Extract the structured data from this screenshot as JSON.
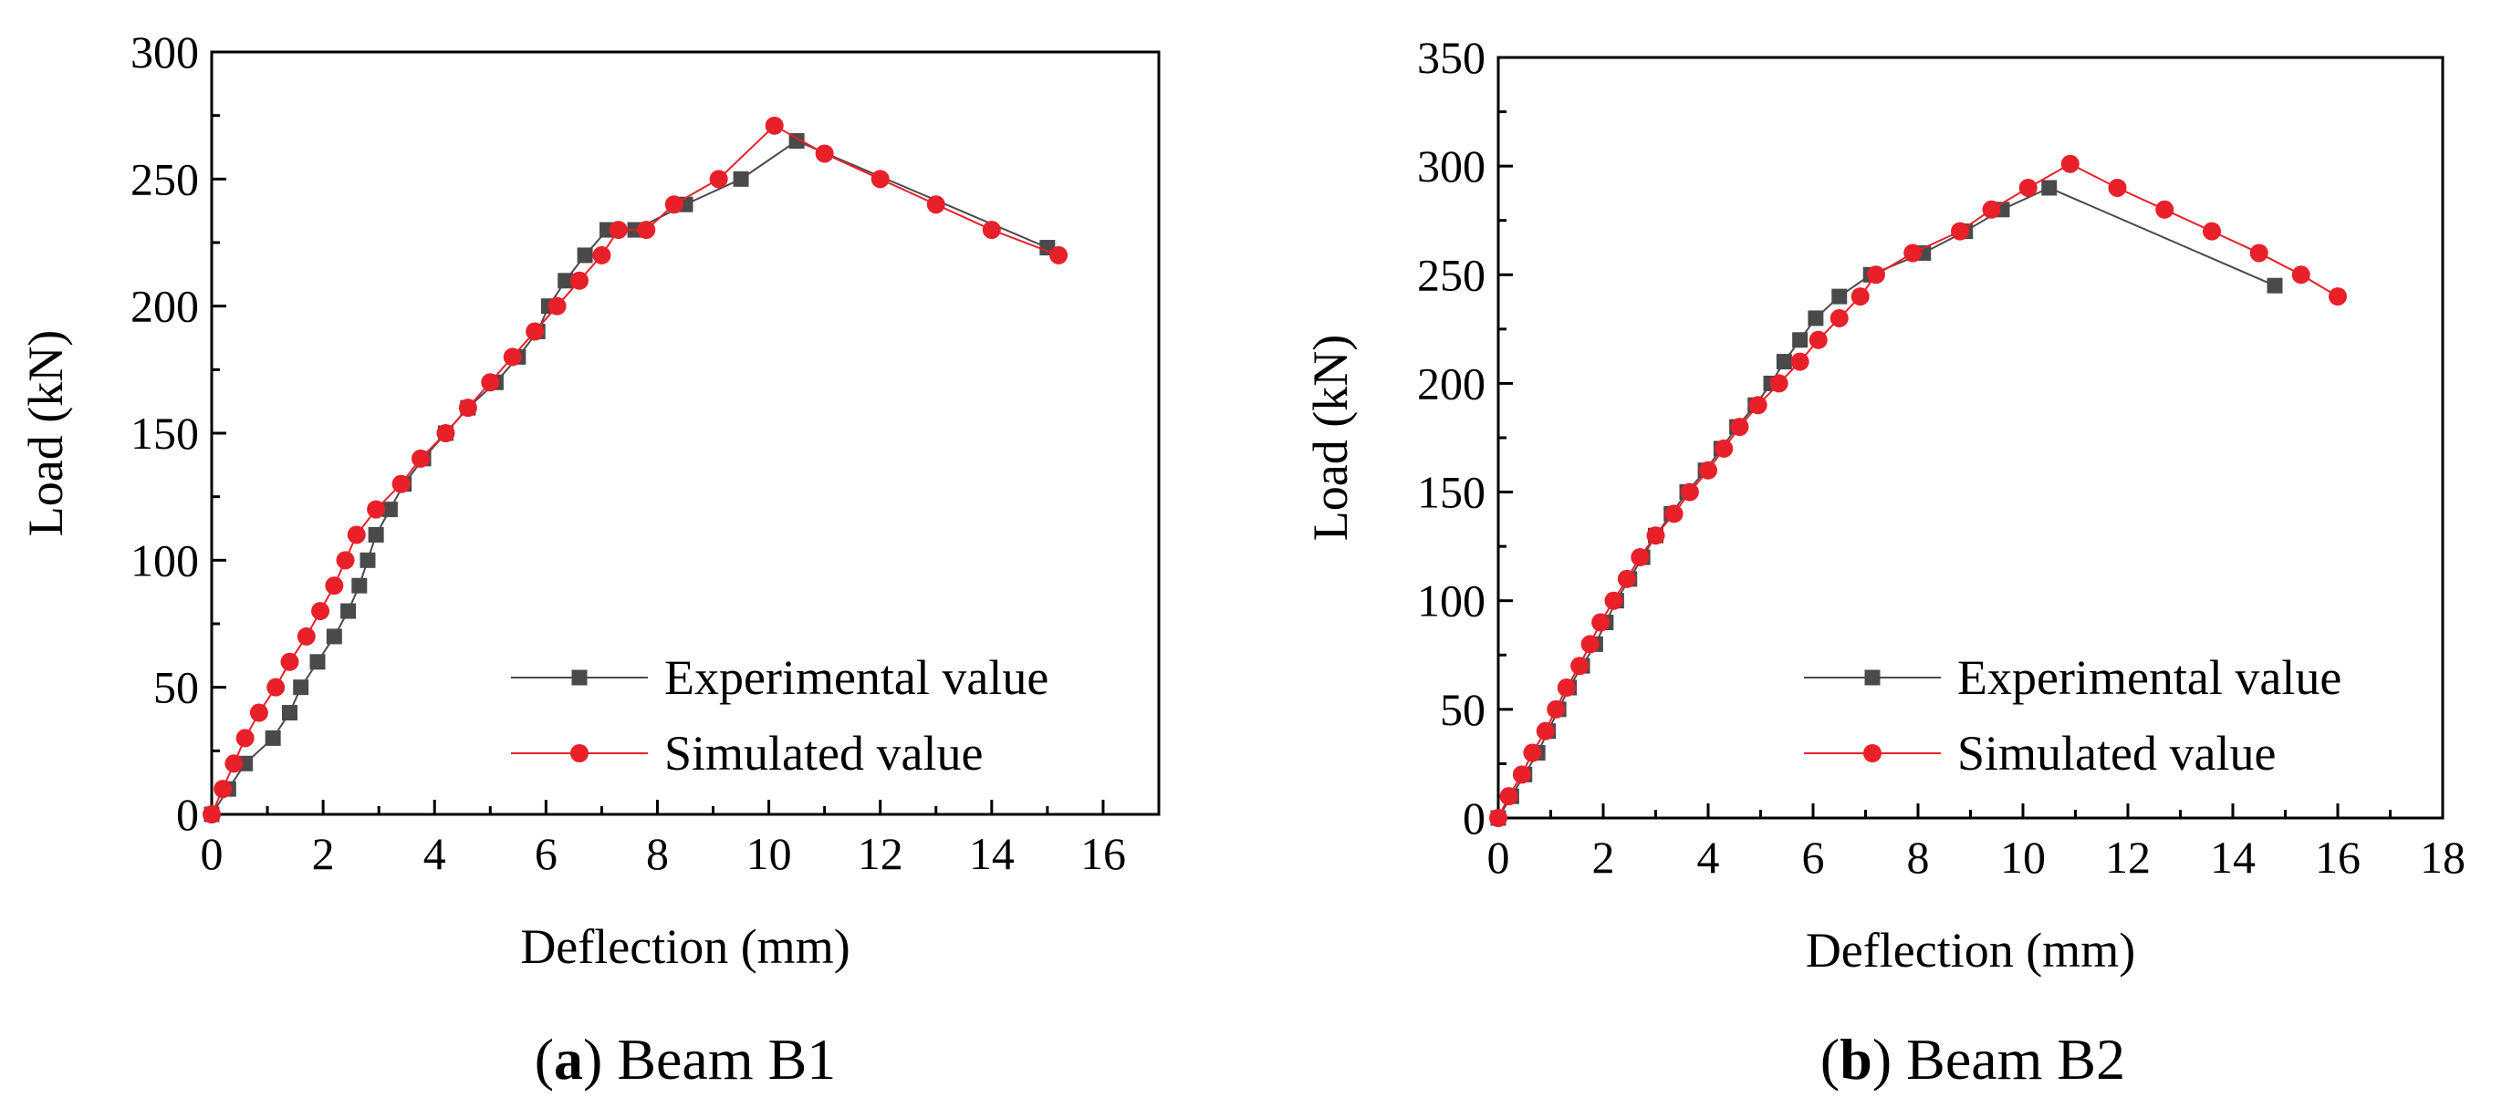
{
  "chart_data": [
    {
      "type": "line",
      "caption_letter": "a",
      "caption_text": ") Beam B1",
      "caption_open": "(",
      "xlabel": "Deflection (mm)",
      "ylabel": "Load (kN)",
      "xlim": [
        0,
        17
      ],
      "ylim": [
        0,
        300
      ],
      "xticks": [
        0,
        2,
        4,
        6,
        8,
        10,
        12,
        14,
        16
      ],
      "yticks": [
        0,
        50,
        100,
        150,
        200,
        250,
        300
      ],
      "legend_position": "bottom-right",
      "series": [
        {
          "name": "Experimental value",
          "color": "#4a4a4a",
          "marker": "square",
          "points": [
            [
              0,
              0
            ],
            [
              0.3,
              10
            ],
            [
              0.6,
              20
            ],
            [
              1.1,
              30
            ],
            [
              1.4,
              40
            ],
            [
              1.6,
              50
            ],
            [
              1.9,
              60
            ],
            [
              2.2,
              70
            ],
            [
              2.45,
              80
            ],
            [
              2.65,
              90
            ],
            [
              2.8,
              100
            ],
            [
              2.95,
              110
            ],
            [
              3.2,
              120
            ],
            [
              3.45,
              130
            ],
            [
              3.8,
              140
            ],
            [
              4.2,
              150
            ],
            [
              4.6,
              160
            ],
            [
              5.1,
              170
            ],
            [
              5.5,
              180
            ],
            [
              5.85,
              190
            ],
            [
              6.05,
              200
            ],
            [
              6.35,
              210
            ],
            [
              6.7,
              220
            ],
            [
              7.1,
              230
            ],
            [
              7.6,
              230
            ],
            [
              8.5,
              240
            ],
            [
              9.5,
              250
            ],
            [
              10.5,
              265
            ],
            [
              15.0,
              223
            ]
          ]
        },
        {
          "name": "Simulated value",
          "color": "#e8202a",
          "marker": "circle",
          "points": [
            [
              0,
              0
            ],
            [
              0.2,
              10
            ],
            [
              0.4,
              20
            ],
            [
              0.6,
              30
            ],
            [
              0.85,
              40
            ],
            [
              1.15,
              50
            ],
            [
              1.4,
              60
            ],
            [
              1.7,
              70
            ],
            [
              1.95,
              80
            ],
            [
              2.2,
              90
            ],
            [
              2.4,
              100
            ],
            [
              2.6,
              110
            ],
            [
              2.95,
              120
            ],
            [
              3.4,
              130
            ],
            [
              3.75,
              140
            ],
            [
              4.2,
              150
            ],
            [
              4.6,
              160
            ],
            [
              5.0,
              170
            ],
            [
              5.4,
              180
            ],
            [
              5.8,
              190
            ],
            [
              6.2,
              200
            ],
            [
              6.6,
              210
            ],
            [
              7.0,
              220
            ],
            [
              7.3,
              230
            ],
            [
              7.8,
              230
            ],
            [
              8.3,
              240
            ],
            [
              9.1,
              250
            ],
            [
              10.1,
              271
            ],
            [
              11.0,
              260
            ],
            [
              12.0,
              250
            ],
            [
              13.0,
              240
            ],
            [
              14.0,
              230
            ],
            [
              15.2,
              220
            ]
          ]
        }
      ]
    },
    {
      "type": "line",
      "caption_letter": "b",
      "caption_text": ") Beam B2",
      "caption_open": "(",
      "xlabel": "Deflection (mm)",
      "ylabel": "Load (kN)",
      "xlim": [
        0,
        18
      ],
      "ylim": [
        0,
        350
      ],
      "xticks": [
        0,
        2,
        4,
        6,
        8,
        10,
        12,
        14,
        16,
        18
      ],
      "yticks": [
        0,
        50,
        100,
        150,
        200,
        250,
        300,
        350
      ],
      "legend_position": "bottom-right",
      "series": [
        {
          "name": "Experimental value",
          "color": "#4a4a4a",
          "marker": "square",
          "points": [
            [
              0,
              0
            ],
            [
              0.25,
              10
            ],
            [
              0.5,
              20
            ],
            [
              0.75,
              30
            ],
            [
              0.95,
              40
            ],
            [
              1.15,
              50
            ],
            [
              1.35,
              60
            ],
            [
              1.6,
              70
            ],
            [
              1.85,
              80
            ],
            [
              2.05,
              90
            ],
            [
              2.25,
              100
            ],
            [
              2.5,
              110
            ],
            [
              2.75,
              120
            ],
            [
              3.0,
              130
            ],
            [
              3.3,
              140
            ],
            [
              3.6,
              150
            ],
            [
              3.95,
              160
            ],
            [
              4.25,
              170
            ],
            [
              4.55,
              180
            ],
            [
              4.9,
              190
            ],
            [
              5.2,
              200
            ],
            [
              5.45,
              210
            ],
            [
              5.75,
              220
            ],
            [
              6.05,
              230
            ],
            [
              6.5,
              240
            ],
            [
              7.1,
              250
            ],
            [
              8.1,
              260
            ],
            [
              8.9,
              270
            ],
            [
              9.6,
              280
            ],
            [
              10.5,
              290
            ],
            [
              14.8,
              245
            ]
          ]
        },
        {
          "name": "Simulated value",
          "color": "#e8202a",
          "marker": "circle",
          "points": [
            [
              0,
              0
            ],
            [
              0.2,
              10
            ],
            [
              0.45,
              20
            ],
            [
              0.65,
              30
            ],
            [
              0.9,
              40
            ],
            [
              1.1,
              50
            ],
            [
              1.3,
              60
            ],
            [
              1.55,
              70
            ],
            [
              1.75,
              80
            ],
            [
              1.95,
              90
            ],
            [
              2.2,
              100
            ],
            [
              2.45,
              110
            ],
            [
              2.7,
              120
            ],
            [
              3.0,
              130
            ],
            [
              3.35,
              140
            ],
            [
              3.65,
              150
            ],
            [
              4.0,
              160
            ],
            [
              4.3,
              170
            ],
            [
              4.6,
              180
            ],
            [
              4.95,
              190
            ],
            [
              5.35,
              200
            ],
            [
              5.75,
              210
            ],
            [
              6.1,
              220
            ],
            [
              6.5,
              230
            ],
            [
              6.9,
              240
            ],
            [
              7.2,
              250
            ],
            [
              7.9,
              260
            ],
            [
              8.8,
              270
            ],
            [
              9.4,
              280
            ],
            [
              10.1,
              290
            ],
            [
              10.9,
              301
            ],
            [
              11.8,
              290
            ],
            [
              12.7,
              280
            ],
            [
              13.6,
              270
            ],
            [
              14.5,
              260
            ],
            [
              15.3,
              250
            ],
            [
              16.0,
              240
            ]
          ]
        }
      ]
    }
  ]
}
